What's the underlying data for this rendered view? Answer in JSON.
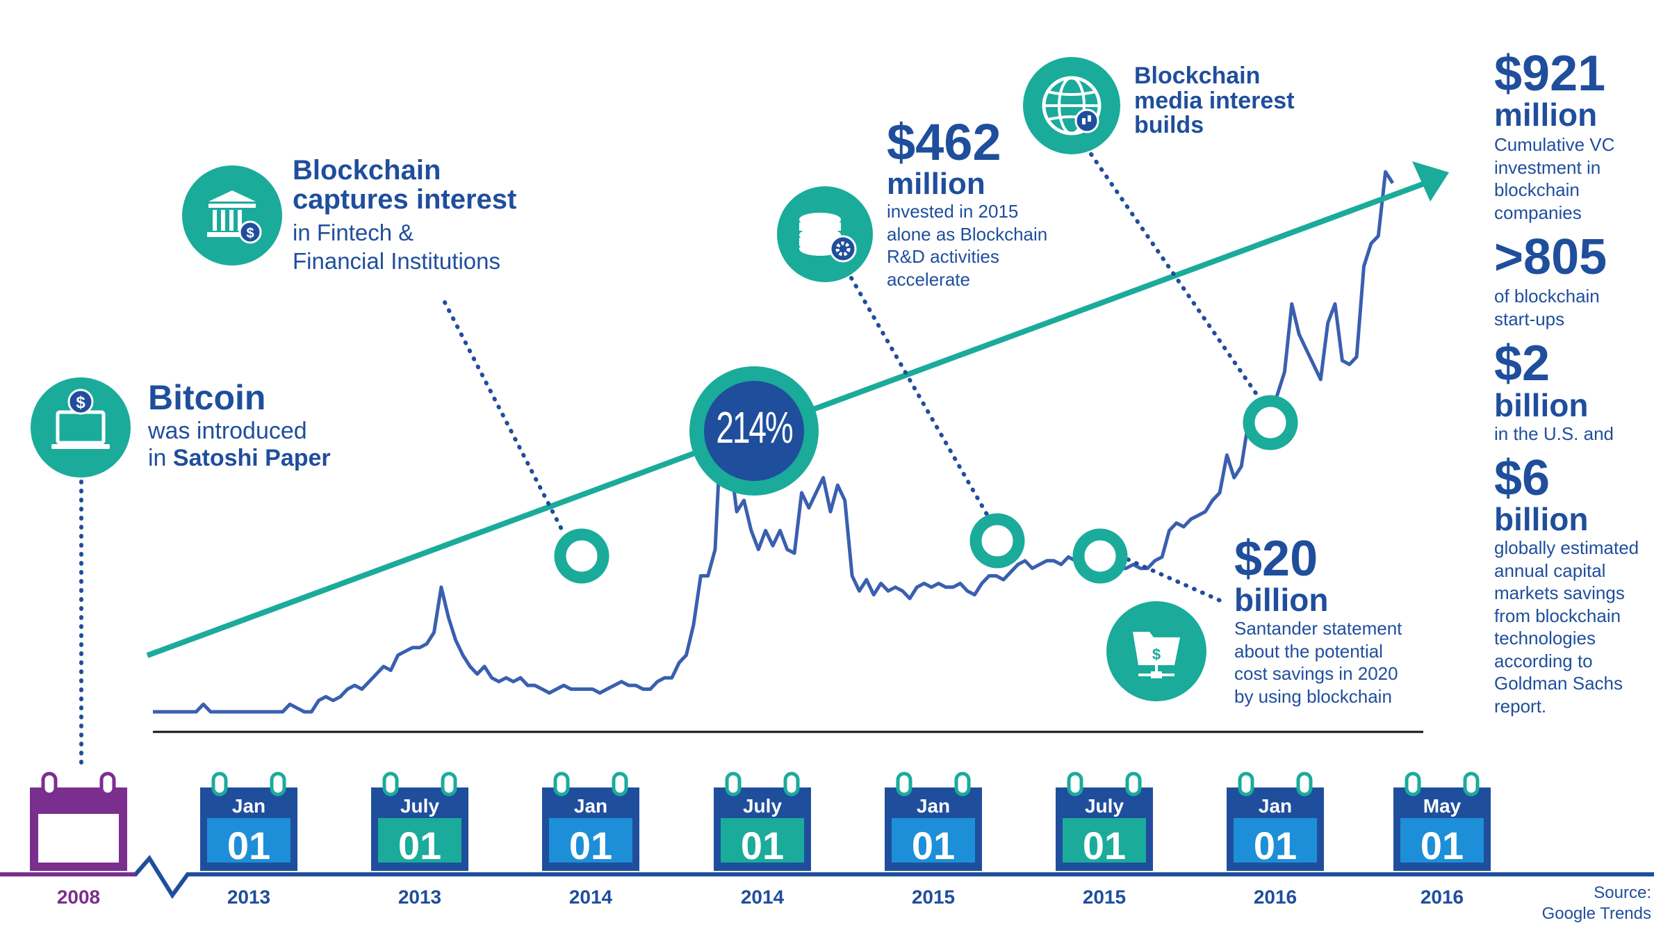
{
  "colors": {
    "navy": "#1f4e9c",
    "teal": "#1aab9b",
    "purple": "#7a2f8e",
    "cal_blue_num": "#1d8fd8",
    "cal_teal_num": "#1aab9b"
  },
  "timeline": [
    {
      "month": "",
      "day": "",
      "year": "2008",
      "style": "purple"
    },
    {
      "month": "Jan",
      "day": "01",
      "year": "2013",
      "style": "blue"
    },
    {
      "month": "July",
      "day": "01",
      "year": "2013",
      "style": "teal"
    },
    {
      "month": "Jan",
      "day": "01",
      "year": "2014",
      "style": "blue"
    },
    {
      "month": "July",
      "day": "01",
      "year": "2014",
      "style": "teal"
    },
    {
      "month": "Jan",
      "day": "01",
      "year": "2015",
      "style": "blue"
    },
    {
      "month": "July",
      "day": "01",
      "year": "2015",
      "style": "teal"
    },
    {
      "month": "Jan",
      "day": "01",
      "year": "2016",
      "style": "blue"
    },
    {
      "month": "May",
      "day": "01",
      "year": "2016",
      "style": "blue"
    }
  ],
  "callouts": {
    "bitcoin": {
      "title": "Bitcoin",
      "line1": "was introduced",
      "line2_pre": "in ",
      "line2_bold": "Satoshi Paper",
      "icon": "laptop-dollar-icon"
    },
    "fintech": {
      "title1": "Blockchain",
      "title2": "captures interest",
      "line1": "in Fintech &",
      "line2": "Financial Institutions",
      "icon": "bank-icon"
    },
    "rd": {
      "amount": "$462",
      "unit": "million",
      "lines": [
        "invested in 2015",
        "alone as Blockchain",
        "R&D activities",
        "accelerate"
      ],
      "icon": "coins-gear-icon"
    },
    "media": {
      "lines": [
        "Blockchain",
        "media interest",
        "builds"
      ],
      "icon": "globe-icon"
    },
    "santander": {
      "amount": "$20",
      "unit": "billion",
      "lines": [
        "Santander statement",
        "about the potential",
        "cost savings in 2020",
        "by using blockchain"
      ],
      "icon": "folder-dollar-icon"
    },
    "growth": {
      "label": "214%"
    }
  },
  "stats": {
    "vc": {
      "amount": "$921",
      "unit": "million",
      "lines": [
        "Cumulative VC",
        "investment in",
        "blockchain",
        "companies"
      ]
    },
    "startups": {
      "amount": ">805",
      "lines": [
        "of blockchain",
        "start-ups"
      ]
    },
    "us": {
      "amount": "$2",
      "unit": "billion",
      "lines": [
        "in the U.S. and"
      ]
    },
    "global": {
      "amount": "$6",
      "unit": "billion",
      "lines": [
        "globally estimated",
        "annual capital",
        "markets savings",
        "from blockchain",
        "technologies",
        "according to",
        "Goldman Sachs",
        "report."
      ]
    }
  },
  "source": {
    "line1": "Source:",
    "line2": "Google Trends"
  },
  "chart_data": {
    "type": "line",
    "series": [
      {
        "values": [
          2,
          2,
          2,
          2,
          2,
          2,
          2,
          4,
          2,
          2,
          2,
          2,
          2,
          2,
          2,
          2,
          2,
          2,
          2,
          4,
          3,
          2,
          2,
          5,
          6,
          5,
          6,
          8,
          9,
          8,
          10,
          12,
          14,
          13,
          17,
          18,
          19,
          19,
          20,
          23,
          35,
          27,
          21,
          17,
          14,
          12,
          14,
          11,
          10,
          11,
          10,
          11,
          9,
          9,
          8,
          7,
          8,
          9,
          8,
          8,
          8,
          8,
          7,
          8,
          9,
          10,
          9,
          9,
          8,
          8,
          10,
          11,
          11,
          15,
          17,
          25,
          38,
          38,
          45,
          84,
          70,
          55,
          58,
          50,
          45,
          50,
          46,
          50,
          45,
          44,
          60,
          56,
          60,
          64,
          55,
          62,
          58,
          38,
          34,
          37,
          33,
          36,
          34,
          35,
          34,
          32,
          35,
          36,
          35,
          36,
          35,
          35,
          36,
          34,
          33,
          36,
          38,
          38,
          37,
          39,
          41,
          42,
          40,
          41,
          42,
          42,
          41,
          43,
          42,
          44,
          45,
          42,
          41,
          42,
          40,
          40,
          41,
          40,
          40,
          42,
          43,
          50,
          52,
          51,
          53,
          54,
          55,
          58,
          60,
          70,
          64,
          67,
          79,
          74,
          72,
          80,
          86,
          92,
          110,
          102,
          98,
          94,
          90,
          105,
          110,
          95,
          94,
          96,
          120,
          126,
          128,
          145,
          142
        ]
      }
    ],
    "ylim": [
      0,
      150
    ]
  }
}
